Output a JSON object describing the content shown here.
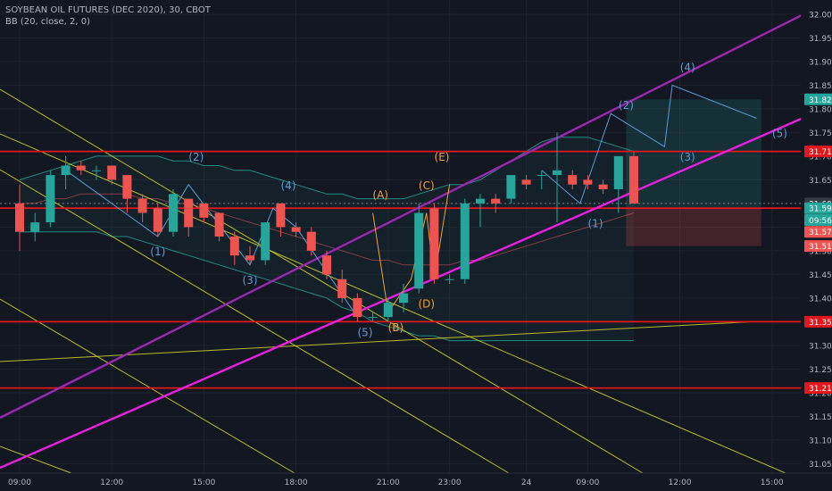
{
  "header": {
    "symbol_line": "SOYBEAN OIL FUTURES (DEC 2020), 30, CBOT",
    "indicator_line": "BB (20, close, 2, 0)"
  },
  "colors": {
    "background": "#131722",
    "grid": "#1e222d",
    "axis_text": "#b2b5be",
    "bull": "#26a69a",
    "bear": "#ef5350",
    "resistance": "#e0181e",
    "channel_upper": "#9c27b0",
    "channel_lower": "#e91ee0",
    "fib_lines": "#d7d726",
    "wave_blue": "#5b9bd5",
    "wave_orange": "#f0a030",
    "bollinger": "#26a69a"
  },
  "chart_data": {
    "type": "candlestick",
    "ylim": [
      31.03,
      32.03
    ],
    "y_ticks": [
      "32.00",
      "31.95",
      "31.90",
      "31.85",
      "31.80",
      "31.75",
      "31.70",
      "31.65",
      "31.60",
      "31.55",
      "31.50",
      "31.45",
      "31.40",
      "31.35",
      "31.30",
      "31.25",
      "31.20",
      "31.15",
      "31.10",
      "31.05"
    ],
    "x_labels": [
      {
        "label": "09:00",
        "bar": 0
      },
      {
        "label": "12:00",
        "bar": 6
      },
      {
        "label": "15:00",
        "bar": 12
      },
      {
        "label": "18:00",
        "bar": 18
      },
      {
        "label": "21:00",
        "bar": 24
      },
      {
        "label": "23:00",
        "bar": 28
      },
      {
        "label": "24",
        "bar": 33
      },
      {
        "label": "09:00",
        "bar": 37
      },
      {
        "label": "12:00",
        "bar": 43
      },
      {
        "label": "15:00",
        "bar": 49
      }
    ],
    "candles": [
      {
        "o": 31.6,
        "h": 31.64,
        "l": 31.5,
        "c": 31.54
      },
      {
        "o": 31.54,
        "h": 31.58,
        "l": 31.52,
        "c": 31.56
      },
      {
        "o": 31.56,
        "h": 31.67,
        "l": 31.55,
        "c": 31.66
      },
      {
        "o": 31.66,
        "h": 31.7,
        "l": 31.63,
        "c": 31.68
      },
      {
        "o": 31.68,
        "h": 31.69,
        "l": 31.66,
        "c": 31.67
      },
      {
        "o": 31.67,
        "h": 31.68,
        "l": 31.65,
        "c": 31.67
      },
      {
        "o": 31.68,
        "h": 31.68,
        "l": 31.64,
        "c": 31.65
      },
      {
        "o": 31.66,
        "h": 31.66,
        "l": 31.58,
        "c": 31.61
      },
      {
        "o": 31.61,
        "h": 31.62,
        "l": 31.56,
        "c": 31.58
      },
      {
        "o": 31.59,
        "h": 31.6,
        "l": 31.53,
        "c": 31.54
      },
      {
        "o": 31.54,
        "h": 31.63,
        "l": 31.53,
        "c": 31.62
      },
      {
        "o": 31.61,
        "h": 31.61,
        "l": 31.53,
        "c": 31.55
      },
      {
        "o": 31.6,
        "h": 31.6,
        "l": 31.56,
        "c": 31.57
      },
      {
        "o": 31.58,
        "h": 31.58,
        "l": 31.52,
        "c": 31.53
      },
      {
        "o": 31.53,
        "h": 31.54,
        "l": 31.47,
        "c": 31.49
      },
      {
        "o": 31.49,
        "h": 31.51,
        "l": 31.47,
        "c": 31.48
      },
      {
        "o": 31.48,
        "h": 31.56,
        "l": 31.47,
        "c": 31.56
      },
      {
        "o": 31.6,
        "h": 31.6,
        "l": 31.53,
        "c": 31.55
      },
      {
        "o": 31.55,
        "h": 31.56,
        "l": 31.53,
        "c": 31.54
      },
      {
        "o": 31.54,
        "h": 31.55,
        "l": 31.49,
        "c": 31.5
      },
      {
        "o": 31.49,
        "h": 31.5,
        "l": 31.44,
        "c": 31.45
      },
      {
        "o": 31.44,
        "h": 31.46,
        "l": 31.39,
        "c": 31.4
      },
      {
        "o": 31.4,
        "h": 31.41,
        "l": 31.35,
        "c": 31.36
      },
      {
        "o": 31.36,
        "h": 31.37,
        "l": 31.35,
        "c": 31.36
      },
      {
        "o": 31.36,
        "h": 31.4,
        "l": 31.35,
        "c": 31.39
      },
      {
        "o": 31.39,
        "h": 31.43,
        "l": 31.37,
        "c": 31.41
      },
      {
        "o": 31.42,
        "h": 31.6,
        "l": 31.41,
        "c": 31.58
      },
      {
        "o": 31.59,
        "h": 31.6,
        "l": 31.43,
        "c": 31.44
      },
      {
        "o": 31.44,
        "h": 31.45,
        "l": 31.43,
        "c": 31.44
      },
      {
        "o": 31.44,
        "h": 31.61,
        "l": 31.43,
        "c": 31.6
      },
      {
        "o": 31.6,
        "h": 31.62,
        "l": 31.55,
        "c": 31.61
      },
      {
        "o": 31.61,
        "h": 31.62,
        "l": 31.58,
        "c": 31.6
      },
      {
        "o": 31.61,
        "h": 31.66,
        "l": 31.6,
        "c": 31.66
      },
      {
        "o": 31.65,
        "h": 31.66,
        "l": 31.63,
        "c": 31.64
      },
      {
        "o": 31.66,
        "h": 31.67,
        "l": 31.63,
        "c": 31.66
      },
      {
        "o": 31.66,
        "h": 31.75,
        "l": 31.56,
        "c": 31.67
      },
      {
        "o": 31.66,
        "h": 31.67,
        "l": 31.63,
        "c": 31.64
      },
      {
        "o": 31.65,
        "h": 31.66,
        "l": 31.63,
        "c": 31.64
      },
      {
        "o": 31.64,
        "h": 31.65,
        "l": 31.62,
        "c": 31.63
      },
      {
        "o": 31.63,
        "h": 31.7,
        "l": 31.58,
        "c": 31.7
      },
      {
        "o": 31.7,
        "h": 31.71,
        "l": 31.6,
        "c": 31.6
      }
    ],
    "bollinger": {
      "upper": [
        31.65,
        31.66,
        31.67,
        31.68,
        31.69,
        31.7,
        31.7,
        31.7,
        31.7,
        31.7,
        31.69,
        31.69,
        31.68,
        31.68,
        31.67,
        31.67,
        31.66,
        31.65,
        31.64,
        31.63,
        31.62,
        31.62,
        31.61,
        31.61,
        31.61,
        31.61,
        31.62,
        31.63,
        31.64,
        31.64,
        31.65,
        31.67,
        31.69,
        31.71,
        31.73,
        31.74,
        31.74,
        31.74,
        31.73,
        31.72,
        31.71
      ],
      "middle": [
        31.6,
        31.6,
        31.61,
        31.61,
        31.62,
        31.62,
        31.62,
        31.62,
        31.61,
        31.61,
        31.6,
        31.6,
        31.59,
        31.58,
        31.57,
        31.56,
        31.55,
        31.54,
        31.53,
        31.52,
        31.51,
        31.5,
        31.49,
        31.48,
        31.48,
        31.47,
        31.47,
        31.47,
        31.47,
        31.48,
        31.48,
        31.49,
        31.5,
        31.51,
        31.52,
        31.53,
        31.54,
        31.55,
        31.56,
        31.57,
        31.58
      ],
      "lower": [
        31.54,
        31.54,
        31.54,
        31.54,
        31.54,
        31.54,
        31.53,
        31.53,
        31.52,
        31.51,
        31.5,
        31.49,
        31.48,
        31.47,
        31.46,
        31.45,
        31.44,
        31.43,
        31.42,
        31.41,
        31.4,
        31.38,
        31.37,
        31.35,
        31.34,
        31.33,
        31.32,
        31.32,
        31.31,
        31.31,
        31.31,
        31.31,
        31.31,
        31.31,
        31.31,
        31.31,
        31.31,
        31.31,
        31.31,
        31.31,
        31.31
      ]
    },
    "horizontal_lines": [
      31.71,
      31.59,
      31.35,
      31.21
    ],
    "price_labels": [
      {
        "label": "31.82",
        "color": "#26a69a",
        "value": 31.82
      },
      {
        "label": "31.71",
        "color": "#e0181e",
        "value": 31.71
      },
      {
        "label": "31.60",
        "color": "#363a45",
        "value": 31.6
      },
      {
        "label": "31.59",
        "color": "#26a69a",
        "value": 31.59
      },
      {
        "label": "09:56",
        "color": "#26a69a",
        "value": 31.565
      },
      {
        "label": "31.57",
        "color": "#ef5350",
        "value": 31.54
      },
      {
        "label": "31.51",
        "color": "#ef5350",
        "value": 31.51
      },
      {
        "label": "31.35",
        "color": "#e0181e",
        "value": 31.35
      },
      {
        "label": "31.21",
        "color": "#e0181e",
        "value": 31.21
      }
    ],
    "current_price": 31.6,
    "position": {
      "bar_start": 39.5,
      "bar_end": 48.3,
      "entry": 31.59,
      "target": 31.82,
      "stop": 31.51
    },
    "wave_labels": [
      {
        "t": "(1)",
        "bar": 9,
        "y": 31.49,
        "color": "blue"
      },
      {
        "t": "(2)",
        "bar": 11.5,
        "y": 31.69,
        "color": "blue"
      },
      {
        "t": "(3)",
        "bar": 15,
        "y": 31.43,
        "color": "blue"
      },
      {
        "t": "(4)",
        "bar": 17.5,
        "y": 31.63,
        "color": "blue"
      },
      {
        "t": "(5)",
        "bar": 22.5,
        "y": 31.32,
        "color": "blue"
      },
      {
        "t": "(A)",
        "bar": 23.5,
        "y": 31.61,
        "color": "orange"
      },
      {
        "t": "(B)",
        "bar": 24.5,
        "y": 31.33,
        "color": "orange"
      },
      {
        "t": "(C)",
        "bar": 26.5,
        "y": 31.63,
        "color": "orange"
      },
      {
        "t": "(D)",
        "bar": 26.5,
        "y": 31.38,
        "color": "orange"
      },
      {
        "t": "(E)",
        "bar": 27.5,
        "y": 31.69,
        "color": "orange"
      },
      {
        "t": "(1)",
        "bar": 37.5,
        "y": 31.55,
        "color": "blue"
      },
      {
        "t": "(2)",
        "bar": 39.5,
        "y": 31.8,
        "color": "blue"
      },
      {
        "t": "(3)",
        "bar": 43.5,
        "y": 31.69,
        "color": "blue"
      },
      {
        "t": "(4)",
        "bar": 43.5,
        "y": 31.88,
        "color": "blue"
      },
      {
        "t": "(5)",
        "bar": 49.5,
        "y": 31.74,
        "color": "blue"
      }
    ]
  }
}
